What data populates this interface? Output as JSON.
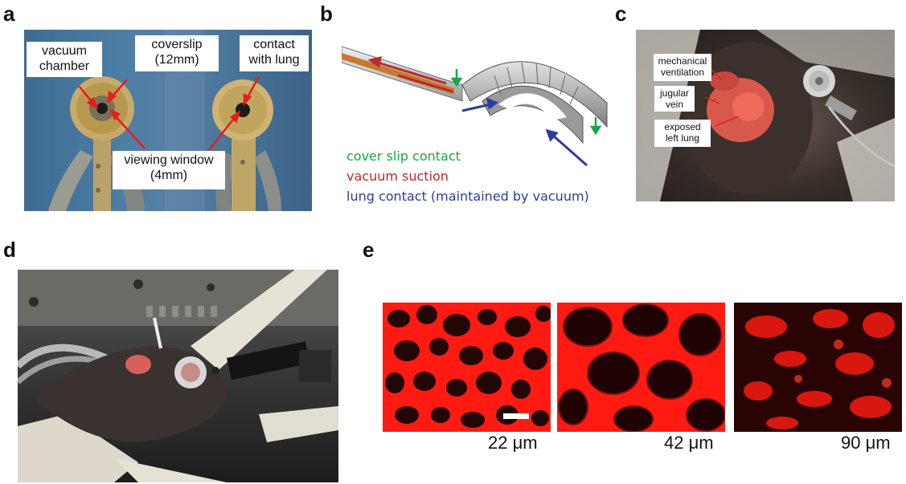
{
  "panel_a": {
    "letter": "a",
    "labels": {
      "vacuum_chamber": "vacuum\nchamber",
      "coverslip": "coverslip\n(12mm)",
      "contact_lung": "contact\nwith lung",
      "viewing_window": "viewing window\n(4mm)"
    }
  },
  "panel_b": {
    "letter": "b",
    "legend": {
      "cover_slip": "cover slip contact",
      "vacuum_suction": "vacuum suction",
      "lung_contact": "lung contact (maintained by vacuum)"
    },
    "colors": {
      "green": "#1fa34a",
      "red": "#c0282b",
      "blue": "#2d3c9e"
    }
  },
  "panel_c": {
    "letter": "c",
    "labels": {
      "mech_vent": "mechanical\nventilation",
      "jugular": "jugular\nvein",
      "exposed_lung": "exposed\nleft lung"
    }
  },
  "panel_d": {
    "letter": "d"
  },
  "panel_e": {
    "letter": "e",
    "depths": [
      "22 μm",
      "42 μm",
      "90 μm"
    ]
  },
  "colors": {
    "arrow_red": "#e02020",
    "micro_red": "#ff1a12"
  }
}
